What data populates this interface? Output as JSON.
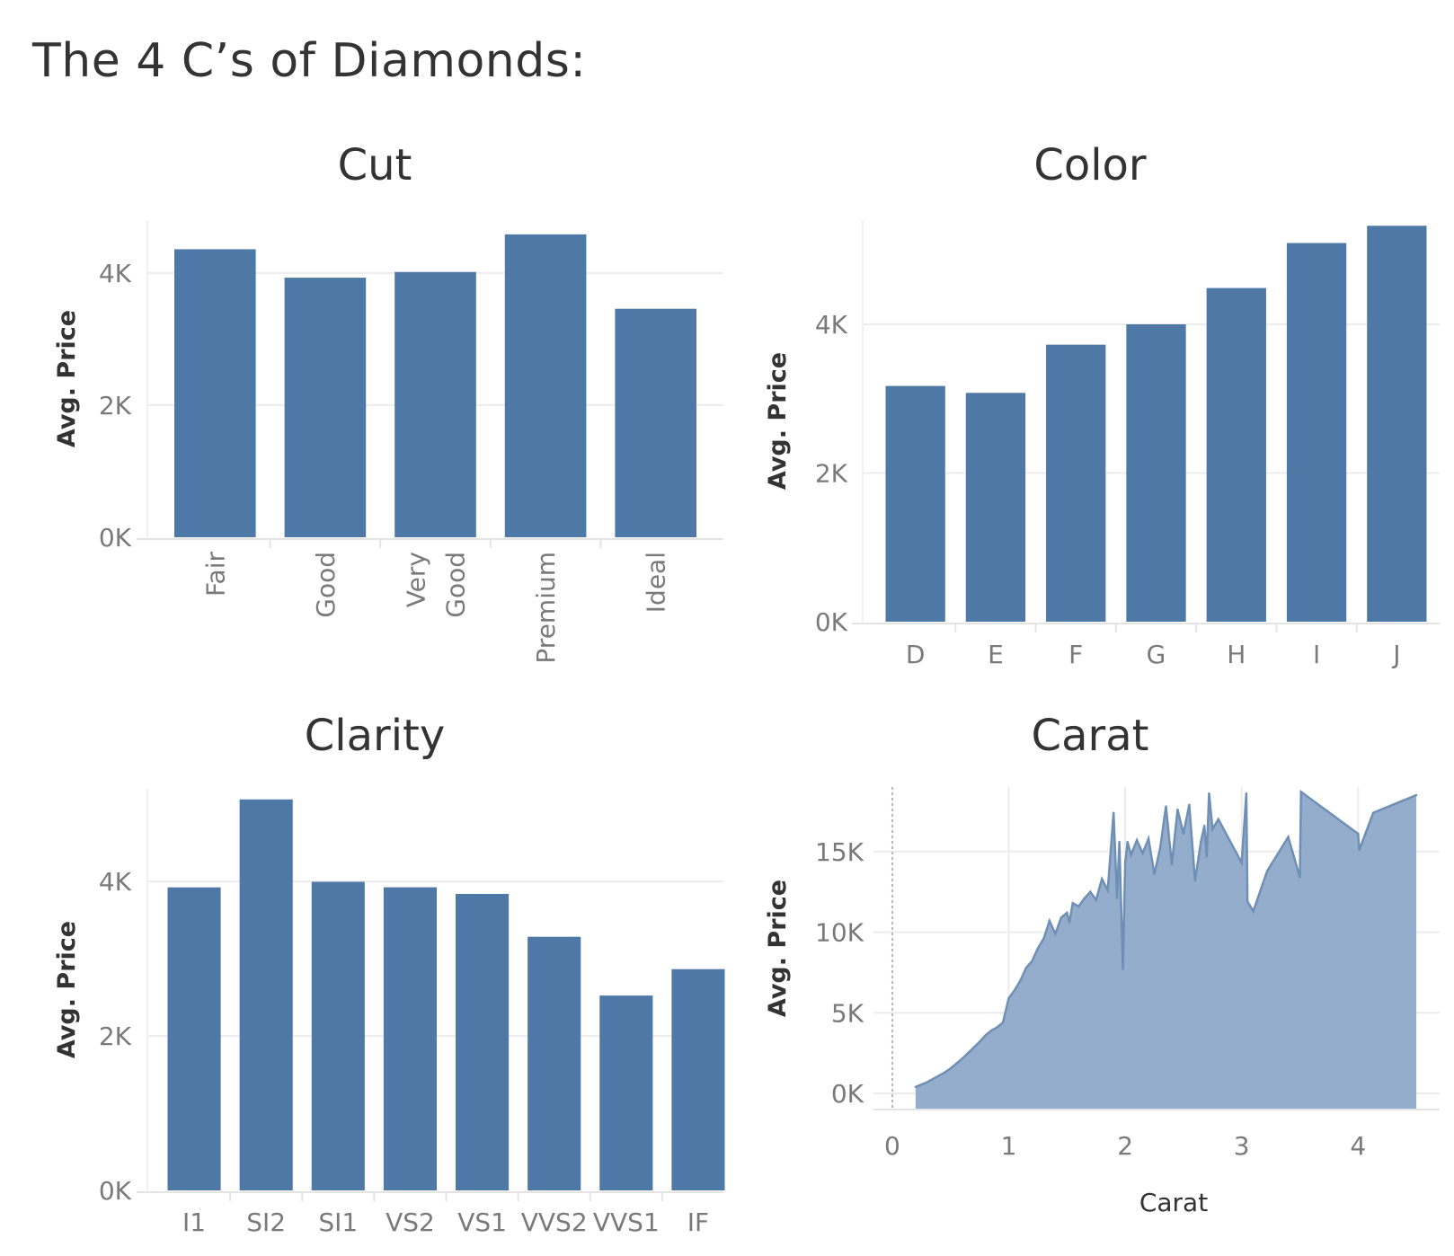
{
  "page_title": "The 4 C’s of Diamonds:",
  "colors": {
    "bar": "#4e79a7",
    "area_fill": "#8fa9c9",
    "area_line": "#6f8fb5",
    "grid": "#ececec",
    "axis_text": "#7a7a7a",
    "title_text": "#333333"
  },
  "chart_data": [
    {
      "id": "cut",
      "type": "bar",
      "title": "Cut",
      "ylabel": "Avg. Price",
      "xlabel": "",
      "ylim": [
        0,
        4800
      ],
      "yticks": [
        0,
        2000,
        4000
      ],
      "ytick_labels": [
        "0K",
        "2K",
        "4K"
      ],
      "categories": [
        "Fair",
        "Good",
        "Very Good",
        "Premium",
        "Ideal"
      ],
      "category_lines": [
        [
          "Fair"
        ],
        [
          "Good"
        ],
        [
          "Very",
          "Good"
        ],
        [
          "Premium"
        ],
        [
          "Ideal"
        ]
      ],
      "values": [
        4359,
        3929,
        4015,
        4584,
        3458
      ],
      "x_labels_rotated": true,
      "grid": true
    },
    {
      "id": "color",
      "type": "bar",
      "title": "Color",
      "ylabel": "Avg. Price",
      "xlabel": "",
      "ylim": [
        0,
        5400
      ],
      "yticks": [
        0,
        2000,
        4000
      ],
      "ytick_labels": [
        "0K",
        "2K",
        "4K"
      ],
      "categories": [
        "D",
        "E",
        "F",
        "G",
        "H",
        "I",
        "J"
      ],
      "values": [
        3170,
        3077,
        3725,
        3999,
        4487,
        5092,
        5324
      ],
      "grid": true
    },
    {
      "id": "clarity",
      "type": "bar",
      "title": "Clarity",
      "ylabel": "Avg. Price",
      "xlabel": "",
      "ylim": [
        0,
        5200
      ],
      "yticks": [
        0,
        2000,
        4000
      ],
      "ytick_labels": [
        "0K",
        "2K",
        "4K"
      ],
      "categories": [
        "I1",
        "SI2",
        "SI1",
        "VS2",
        "VS1",
        "VVS2",
        "VVS1",
        "IF"
      ],
      "values": [
        3924,
        5063,
        3996,
        3925,
        3839,
        3284,
        2523,
        2865
      ],
      "grid": true
    },
    {
      "id": "carat",
      "type": "area",
      "title": "Carat",
      "ylabel": "Avg. Price",
      "xlabel": "Carat",
      "xlim": [
        -0.1,
        4.7
      ],
      "ylim": [
        -1000,
        19000
      ],
      "xticks": [
        0,
        1,
        2,
        3,
        4
      ],
      "xtick_labels": [
        "0",
        "1",
        "2",
        "3",
        "4"
      ],
      "yticks": [
        0,
        5000,
        10000,
        15000
      ],
      "ytick_labels": [
        "0K",
        "5K",
        "10K",
        "15K"
      ],
      "grid": true,
      "x": [
        0.2,
        0.25,
        0.3,
        0.35,
        0.4,
        0.45,
        0.5,
        0.55,
        0.6,
        0.65,
        0.7,
        0.75,
        0.8,
        0.85,
        0.9,
        0.95,
        1.0,
        1.02,
        1.05,
        1.1,
        1.15,
        1.2,
        1.25,
        1.3,
        1.35,
        1.4,
        1.45,
        1.5,
        1.52,
        1.55,
        1.6,
        1.65,
        1.7,
        1.75,
        1.8,
        1.85,
        1.9,
        1.93,
        1.95,
        1.98,
        2.0,
        2.02,
        2.05,
        2.1,
        2.15,
        2.2,
        2.25,
        2.3,
        2.35,
        2.4,
        2.45,
        2.5,
        2.55,
        2.6,
        2.65,
        2.68,
        2.7,
        2.72,
        2.75,
        2.8,
        3.0,
        3.04,
        3.05,
        3.1,
        3.22,
        3.4,
        3.5,
        3.51,
        4.0,
        4.01,
        4.13,
        4.5
      ],
      "values": [
        400,
        550,
        700,
        900,
        1100,
        1300,
        1550,
        1850,
        2150,
        2500,
        2850,
        3200,
        3600,
        3900,
        4100,
        4400,
        5900,
        6100,
        6400,
        7000,
        7800,
        8200,
        9000,
        9600,
        10700,
        9900,
        10900,
        11200,
        10600,
        11800,
        11600,
        12100,
        12500,
        12000,
        13300,
        12600,
        17400,
        12100,
        15600,
        7700,
        14300,
        15600,
        14800,
        15700,
        14900,
        15800,
        13600,
        15200,
        17800,
        14200,
        17600,
        16100,
        17900,
        13200,
        15600,
        16600,
        14700,
        18600,
        16400,
        17000,
        14300,
        18600,
        11900,
        11300,
        13800,
        15900,
        13400,
        18700,
        16100,
        15100,
        17400,
        18500
      ]
    }
  ]
}
